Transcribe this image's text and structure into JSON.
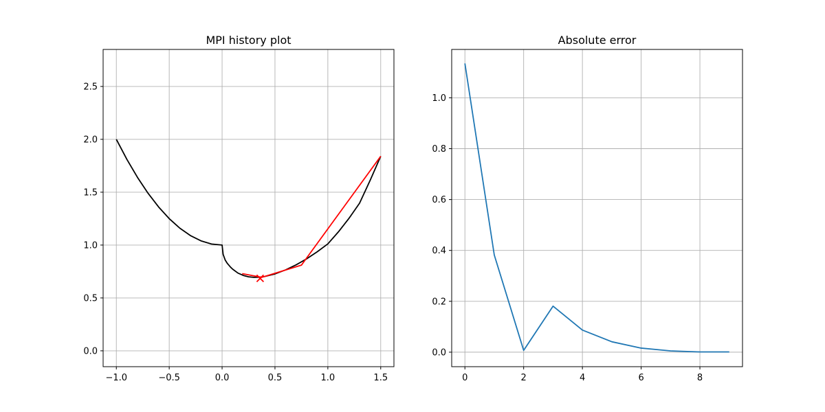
{
  "chart_data": [
    {
      "type": "line",
      "title": "MPI history plot",
      "xlim": [
        -1.125,
        1.625
      ],
      "ylim": [
        -0.15,
        2.85
      ],
      "xticks": [
        -1.0,
        -0.5,
        0.0,
        0.5,
        1.0,
        1.5
      ],
      "xtick_labels": [
        "−1.0",
        "−0.5",
        "0.0",
        "0.5",
        "1.0",
        "1.5"
      ],
      "yticks": [
        0.0,
        0.5,
        1.0,
        1.5,
        2.0,
        2.5
      ],
      "ytick_labels": [
        "0.0",
        "0.5",
        "1.0",
        "1.5",
        "2.0",
        "2.5"
      ],
      "grid": true,
      "series": [
        {
          "color": "#000000",
          "kind": "curve",
          "x": [
            -1.0,
            -0.9,
            -0.8,
            -0.7,
            -0.6,
            -0.5,
            -0.4,
            -0.3,
            -0.2,
            -0.1,
            0.0,
            0.01,
            0.03,
            0.05,
            0.08,
            0.1,
            0.15,
            0.2,
            0.25,
            0.3,
            0.35,
            0.4,
            0.5,
            0.6,
            0.7,
            0.8,
            0.9,
            1.0,
            1.1,
            1.2,
            1.3,
            1.4,
            1.5
          ],
          "y": [
            2.0,
            1.81,
            1.64,
            1.49,
            1.36,
            1.25,
            1.16,
            1.09,
            1.04,
            1.01,
            1.0,
            0.911,
            0.857,
            0.826,
            0.791,
            0.772,
            0.735,
            0.713,
            0.7,
            0.695,
            0.696,
            0.702,
            0.727,
            0.765,
            0.813,
            0.87,
            0.937,
            1.011,
            1.125,
            1.253,
            1.396,
            1.612,
            1.84
          ]
        },
        {
          "color": "#ff0000",
          "kind": "history",
          "x": [
            1.5,
            0.75,
            0.375,
            0.19
          ],
          "y": [
            1.84,
            0.81,
            0.695,
            0.73
          ]
        }
      ],
      "marker": {
        "x": 0.36,
        "y": 0.685,
        "symbol": "x",
        "color": "#ff0000"
      }
    },
    {
      "type": "line",
      "title": "Absolute error",
      "xlim": [
        -0.45,
        9.45
      ],
      "ylim": [
        -0.057,
        1.19
      ],
      "xticks": [
        0,
        2,
        4,
        6,
        8
      ],
      "xtick_labels": [
        "0",
        "2",
        "4",
        "6",
        "8"
      ],
      "yticks": [
        0.0,
        0.2,
        0.4,
        0.6,
        0.8,
        1.0
      ],
      "ytick_labels": [
        "0.0",
        "0.2",
        "0.4",
        "0.6",
        "0.8",
        "1.0"
      ],
      "grid": true,
      "series": [
        {
          "color": "#1f77b4",
          "kind": "line",
          "x": [
            0,
            1,
            2,
            3,
            4,
            5,
            6,
            7,
            8,
            9
          ],
          "y": [
            1.135,
            0.382,
            0.007,
            0.181,
            0.087,
            0.041,
            0.016,
            0.005,
            0.001,
            0.001
          ]
        }
      ]
    }
  ]
}
